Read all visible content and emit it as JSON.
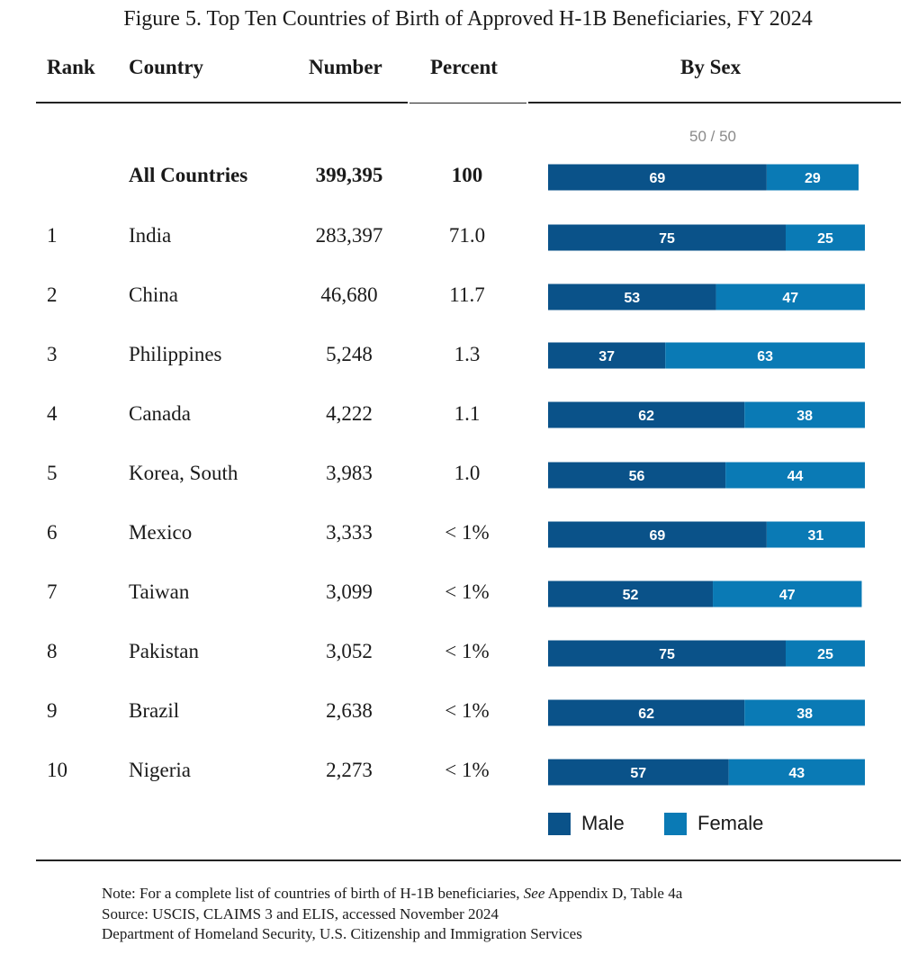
{
  "title": "Figure 5. Top Ten Countries of Birth of Approved H-1B Beneficiaries, FY 2024",
  "headers": {
    "rank": "Rank",
    "country": "Country",
    "number": "Number",
    "percent": "Percent",
    "by_sex": "By Sex"
  },
  "reference_label": "50 / 50",
  "colors": {
    "male": "#0a5289",
    "female": "#0a7ab5"
  },
  "legend": {
    "male": "Male",
    "female": "Female"
  },
  "chart_data": {
    "type": "bar",
    "stacked": true,
    "orientation": "horizontal",
    "categories": [
      "All Countries",
      "India",
      "China",
      "Philippines",
      "Canada",
      "Korea, South",
      "Mexico",
      "Taiwan",
      "Pakistan",
      "Brazil",
      "Nigeria"
    ],
    "series": [
      {
        "name": "Male",
        "values": [
          69,
          75,
          53,
          37,
          62,
          56,
          69,
          52,
          75,
          62,
          57
        ]
      },
      {
        "name": "Female",
        "values": [
          29,
          25,
          47,
          63,
          38,
          44,
          31,
          47,
          25,
          38,
          43
        ]
      }
    ],
    "reference_line": "50 / 50"
  },
  "rows": [
    {
      "rank": "",
      "country": "All Countries",
      "number": "399,395",
      "percent": "100",
      "male": "69",
      "female": "29"
    },
    {
      "rank": "1",
      "country": "India",
      "number": "283,397",
      "percent": "71.0",
      "male": "75",
      "female": "25"
    },
    {
      "rank": "2",
      "country": "China",
      "number": "46,680",
      "percent": "11.7",
      "male": "53",
      "female": "47"
    },
    {
      "rank": "3",
      "country": "Philippines",
      "number": "5,248",
      "percent": "1.3",
      "male": "37",
      "female": "63"
    },
    {
      "rank": "4",
      "country": "Canada",
      "number": "4,222",
      "percent": "1.1",
      "male": "62",
      "female": "38"
    },
    {
      "rank": "5",
      "country": "Korea, South",
      "number": "3,983",
      "percent": "1.0",
      "male": "56",
      "female": "44"
    },
    {
      "rank": "6",
      "country": "Mexico",
      "number": "3,333",
      "percent": "< 1%",
      "male": "69",
      "female": "31"
    },
    {
      "rank": "7",
      "country": "Taiwan",
      "number": "3,099",
      "percent": "< 1%",
      "male": "52",
      "female": "47"
    },
    {
      "rank": "8",
      "country": "Pakistan",
      "number": "3,052",
      "percent": "< 1%",
      "male": "75",
      "female": "25"
    },
    {
      "rank": "9",
      "country": "Brazil",
      "number": "2,638",
      "percent": "< 1%",
      "male": "62",
      "female": "38"
    },
    {
      "rank": "10",
      "country": "Nigeria",
      "number": "2,273",
      "percent": "< 1%",
      "male": "57",
      "female": "43"
    }
  ],
  "notes": {
    "note_prefix": "Note: For a complete list of countries of birth of H-1B beneficiaries, ",
    "note_see": "See",
    "note_suffix": " Appendix D, Table 4a",
    "source": "Source: USCIS, CLAIMS 3 and ELIS, accessed November 2024",
    "agency": "Department of Homeland Security, U.S. Citizenship and Immigration Services"
  }
}
